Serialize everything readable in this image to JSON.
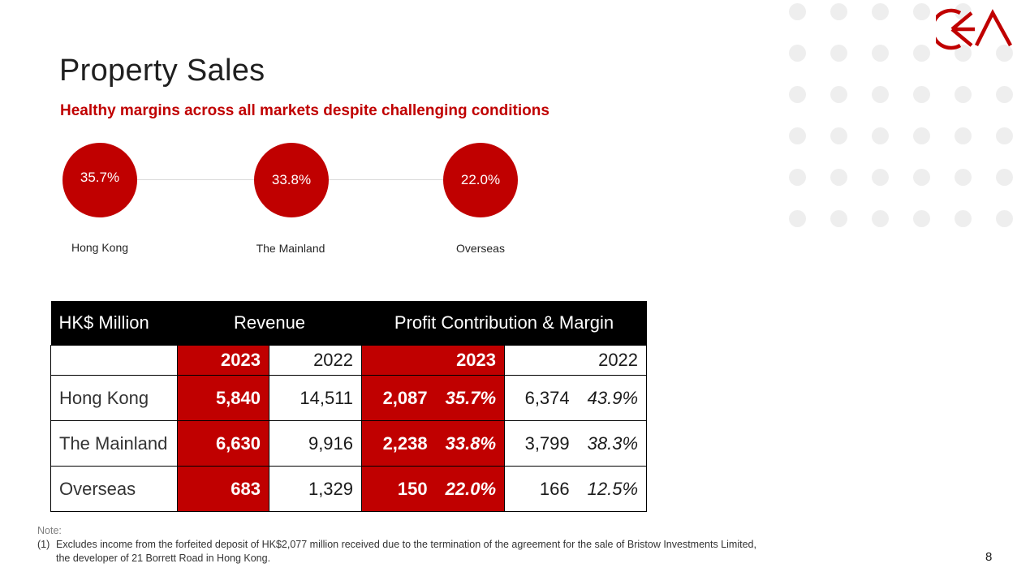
{
  "slide": {
    "title": "Property Sales",
    "subtitle": "Healthy margins across all markets despite challenging conditions",
    "page_number": "8"
  },
  "margins": [
    {
      "value": "35.7%",
      "label": "Hong Kong"
    },
    {
      "value": "33.8%",
      "label": "The Mainland"
    },
    {
      "value": "22.0%",
      "label": "Overseas"
    }
  ],
  "table": {
    "header": {
      "unit": "HK$ Million",
      "revenue": "Revenue",
      "profit": "Profit Contribution & Margin"
    },
    "years": {
      "rev_2023": "2023",
      "rev_2022": "2022",
      "pc_2023": "2023",
      "pc_2022": "2022"
    },
    "rows": [
      {
        "name": "Hong Kong",
        "rev_2023": "5,840",
        "rev_2022": "14,511",
        "pc_2023": "2,087",
        "margin_2023": "35.7%",
        "pc_2022": "6,374",
        "margin_2022": "43.9%"
      },
      {
        "name": "The Mainland",
        "rev_2023": "6,630",
        "rev_2022": "9,916",
        "pc_2023": "2,238",
        "margin_2023": "33.8%",
        "pc_2022": "3,799",
        "margin_2022": "38.3%"
      },
      {
        "name": "Overseas",
        "rev_2023": "683",
        "rev_2022": "1,329",
        "pc_2023": "150",
        "margin_2023": "22.0%",
        "pc_2022": "166",
        "margin_2022": "12.5%"
      }
    ]
  },
  "note": {
    "label": "Note:",
    "items": [
      {
        "num": "(1)",
        "text": "Excludes income from the forfeited deposit of HK$2,077 million received due to the termination of the agreement for the sale of Bristow Investments Limited, the developer of 21 Borrett Road in Hong Kong."
      }
    ]
  },
  "colors": {
    "accent": "#c00000",
    "header": "#000000",
    "dots": "#eeeeee"
  },
  "icons": {
    "logo": "ck-asset-logo"
  }
}
